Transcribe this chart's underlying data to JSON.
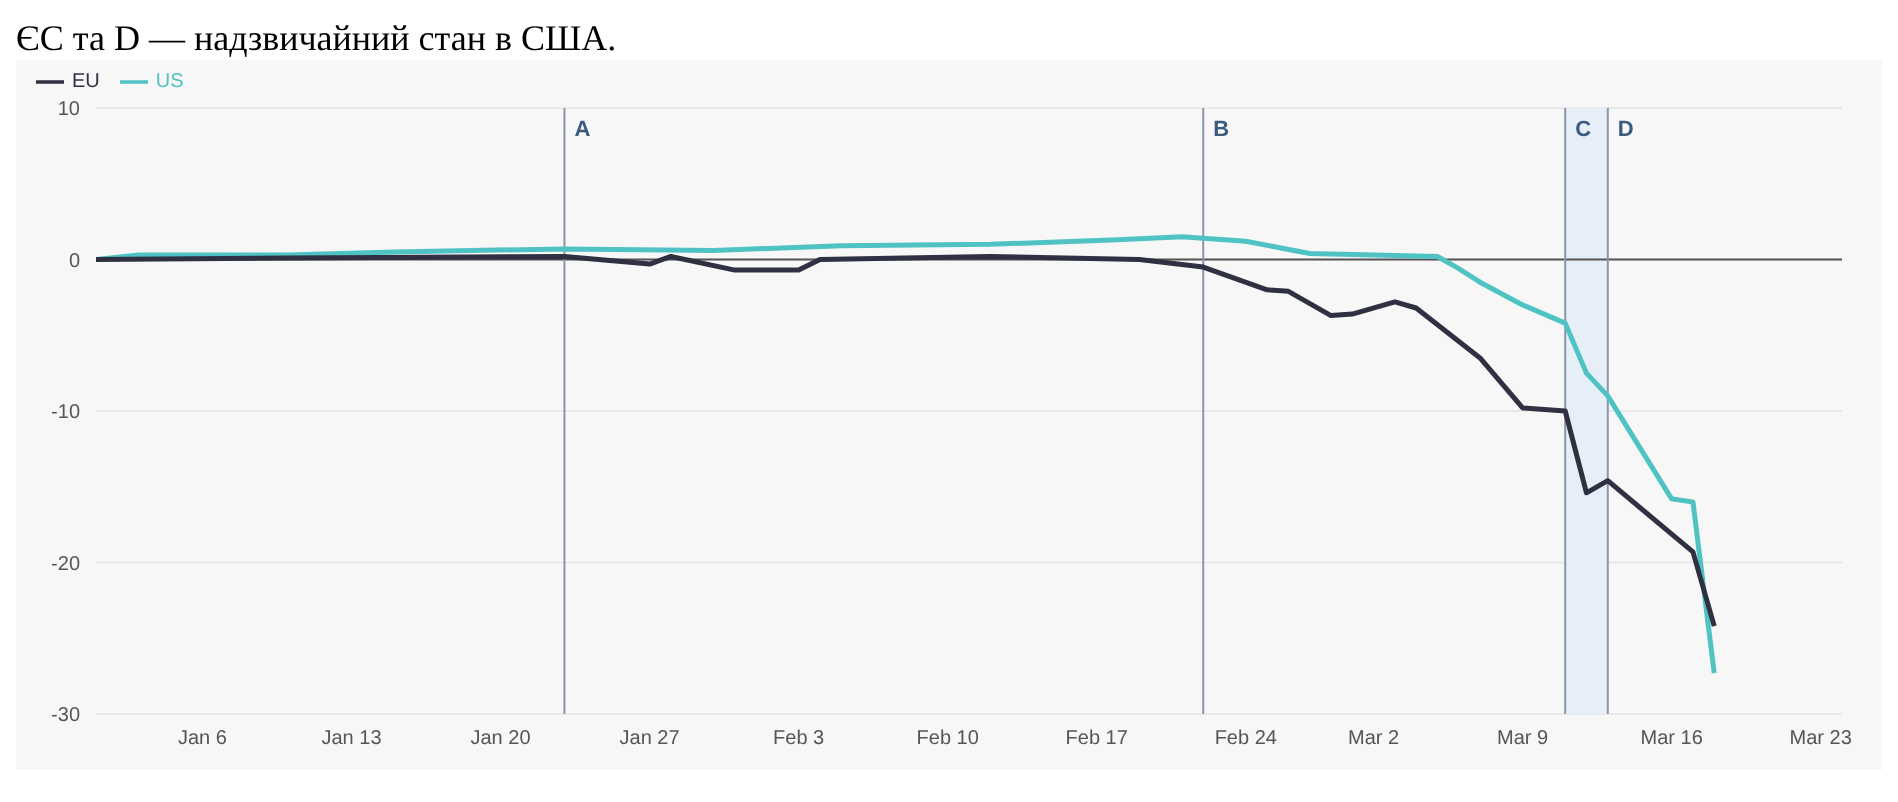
{
  "chart_data": {
    "type": "line",
    "annotations": [
      "ЄС та D — надзвичайний стан в США."
    ],
    "xlim": [
      "--01-01",
      "--03-24"
    ],
    "xticks": [
      {
        "value": "--01-06",
        "label": "Jan 6"
      },
      {
        "value": "--01-13",
        "label": "Jan 13"
      },
      {
        "value": "--01-20",
        "label": "Jan 20"
      },
      {
        "value": "--01-27",
        "label": "Jan 27"
      },
      {
        "value": "--02-03",
        "label": "Feb 3"
      },
      {
        "value": "--02-10",
        "label": "Feb 10"
      },
      {
        "value": "--02-17",
        "label": "Feb 17"
      },
      {
        "value": "--02-24",
        "label": "Feb 24"
      },
      {
        "value": "--03-02",
        "label": "Mar 2"
      },
      {
        "value": "--03-09",
        "label": "Mar 9"
      },
      {
        "value": "--03-16",
        "label": "Mar 16"
      },
      {
        "value": "--03-23",
        "label": "Mar 23"
      }
    ],
    "ylim": [
      -30,
      10
    ],
    "yticks": [
      10,
      0,
      -10,
      -20,
      -30
    ],
    "grid": "y",
    "legend": "top left",
    "marker": "none",
    "line_style": "solid",
    "ref_lines": [
      {
        "axis": "y",
        "value": 0,
        "color": "#555555"
      },
      {
        "axis": "x",
        "value": "--01-23",
        "label": "A",
        "color": "#8a96a8"
      },
      {
        "axis": "x",
        "value": "--02-22",
        "label": "B",
        "color": "#8a96a8"
      },
      {
        "axis": "x",
        "value": "--03-11",
        "label": "C",
        "color": "#8a96a8"
      },
      {
        "axis": "x",
        "value": "--03-13",
        "label": "D",
        "color": "#8a96a8"
      }
    ],
    "bands": [
      {
        "axis": "x",
        "from": "--03-11",
        "to": "--03-13",
        "color": "#e6eff8"
      }
    ],
    "series": [
      {
        "name": "US",
        "color": "#4fc3c3",
        "x": [
          "--01-01",
          "--01-03",
          "--01-10",
          "--01-15",
          "--01-23",
          "--01-30",
          "--02-05",
          "--02-12",
          "--02-18",
          "--02-21",
          "--02-24",
          "--02-27",
          "--03-02",
          "--03-05",
          "--03-06",
          "--03-07",
          "--03-09",
          "--03-11",
          "--03-12",
          "--03-13",
          "--03-16",
          "--03-17",
          "--03-18"
        ],
        "values": [
          0,
          0.3,
          0.3,
          0.5,
          0.7,
          0.6,
          0.9,
          1.0,
          1.3,
          1.5,
          1.2,
          0.4,
          0.3,
          0.2,
          -0.6,
          -1.5,
          -3.0,
          -4.2,
          -7.5,
          -9.0,
          -15.8,
          -16.0,
          -27.3
        ]
      },
      {
        "name": "EU",
        "color": "#2f3042",
        "x": [
          "--01-01",
          "--01-10",
          "--01-23",
          "--01-27",
          "--01-28",
          "--01-31",
          "--02-03",
          "--02-04",
          "--02-12",
          "--02-19",
          "--02-22",
          "--02-25",
          "--02-26",
          "--02-28",
          "--03-01",
          "--03-03",
          "--03-04",
          "--03-07",
          "--03-09",
          "--03-11",
          "--03-12",
          "--03-13",
          "--03-17",
          "--03-18"
        ],
        "values": [
          0,
          0.1,
          0.2,
          -0.3,
          0.2,
          -0.7,
          -0.7,
          0,
          0.2,
          0,
          -0.5,
          -2.0,
          -2.1,
          -3.7,
          -3.6,
          -2.8,
          -3.2,
          -6.5,
          -9.8,
          -10.0,
          -15.4,
          -14.6,
          -19.3,
          -24.2
        ]
      }
    ]
  }
}
